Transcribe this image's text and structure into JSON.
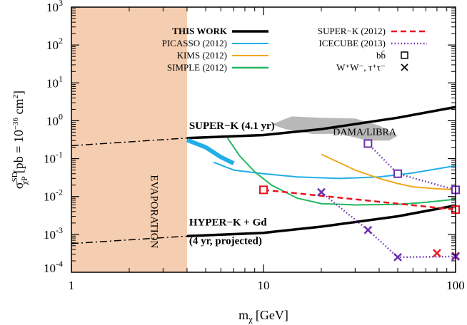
{
  "chart_data": {
    "type": "line",
    "xlabel": "m",
    "xlabel_sub": "χ",
    "xlabel_unit": "[GeV]",
    "ylabel": "σ",
    "ylabel_sup": "SD",
    "ylabel_sub": "χP",
    "ylabel_unit": "[pb = 10",
    "ylabel_unit_exp": "−36",
    "ylabel_unit_end": " cm",
    "ylabel_unit_exp2": "2",
    "ylabel_close": "]",
    "x_scale": "log",
    "y_scale": "log",
    "xlim": [
      1,
      100
    ],
    "ylim": [
      0.0001,
      1000
    ],
    "x_ticks": [
      {
        "value": 1,
        "label": "1"
      },
      {
        "value": 10,
        "label": "10"
      },
      {
        "value": 100,
        "label": "100"
      }
    ],
    "y_ticks": [
      {
        "value": 0.001,
        "base": "10",
        "exp": "-3"
      },
      {
        "value": 0.01,
        "base": "10",
        "exp": "-2"
      },
      {
        "value": 0.1,
        "base": "10",
        "exp": "-1"
      },
      {
        "value": 1,
        "base": "10",
        "exp": "0"
      },
      {
        "value": 10,
        "base": "10",
        "exp": "1"
      },
      {
        "value": 100,
        "base": "10",
        "exp": "2"
      },
      {
        "value": 1000,
        "base": "10",
        "exp": "3"
      }
    ],
    "y_tick_low": {
      "value": 0.0001,
      "base": "10",
      "exp": "-4"
    },
    "grid": false,
    "legend_position": "top",
    "shaded_region": {
      "x": [
        1,
        4
      ],
      "label": "EVAPORATION",
      "color": "#f5cdb0"
    },
    "series": [
      {
        "name": "THIS WORK — SUPER-K (4.1 yr)",
        "color": "#000000",
        "style": "solid",
        "x": [
          4,
          10,
          20,
          50,
          100
        ],
        "y": [
          0.35,
          0.42,
          0.6,
          1.2,
          2.3
        ]
      },
      {
        "name": "SUPER-K (4.1 yr) extrapolation",
        "color": "#000000",
        "style": "dashdot",
        "x": [
          1,
          4
        ],
        "y": [
          0.22,
          0.35
        ]
      },
      {
        "name": "THIS WORK — HYPER-K + Gd (4 yr, projected)",
        "color": "#000000",
        "style": "solid",
        "x": [
          4,
          10,
          20,
          50,
          100
        ],
        "y": [
          0.0009,
          0.0011,
          0.0016,
          0.003,
          0.0058
        ]
      },
      {
        "name": "HYPER-K + Gd extrapolation",
        "color": "#000000",
        "style": "dashdot",
        "x": [
          1,
          4
        ],
        "y": [
          0.00057,
          0.0009
        ]
      },
      {
        "name": "PICASSO (2012)",
        "color": "#22aee6",
        "style": "solid",
        "x": [
          5.5,
          7,
          10,
          15,
          25,
          40,
          60,
          100
        ],
        "y": [
          0.08,
          0.05,
          0.04,
          0.033,
          0.03,
          0.033,
          0.042,
          0.065
        ]
      },
      {
        "name": "PICASSO (2012) low-mass band",
        "color": "#22aee6",
        "style": "band",
        "x": [
          4,
          5,
          6,
          7
        ],
        "y": [
          0.31,
          0.2,
          0.11,
          0.075
        ]
      },
      {
        "name": "KIMS (2012)",
        "color": "#f2a81d",
        "style": "solid",
        "x": [
          20,
          30,
          40,
          50,
          60,
          80,
          100
        ],
        "y": [
          0.13,
          0.05,
          0.03,
          0.022,
          0.018,
          0.016,
          0.015
        ]
      },
      {
        "name": "SIMPLE (2012)",
        "color": "#22b860",
        "style": "solid",
        "x": [
          6.5,
          7.5,
          9,
          11,
          15,
          20,
          30,
          50,
          70,
          100
        ],
        "y": [
          0.35,
          0.12,
          0.045,
          0.02,
          0.009,
          0.0065,
          0.006,
          0.0062,
          0.007,
          0.0085
        ]
      },
      {
        "name": "SUPER-K (2012)",
        "color": "#e8141c",
        "style": "dashed",
        "marker": "square",
        "x": [
          10,
          100
        ],
        "y": [
          0.015,
          0.0045
        ]
      },
      {
        "name": "SUPER-K (2012) W+W−, τ+τ−",
        "color": "#e8141c",
        "style": "none",
        "marker": "cross",
        "x": [
          80,
          100
        ],
        "y": [
          0.00032,
          0.00027
        ]
      },
      {
        "name": "ICECUBE (2013) bb̄",
        "color": "#6b2fb0",
        "style": "dotted",
        "marker": "square",
        "x": [
          35,
          50,
          100
        ],
        "y": [
          0.25,
          0.04,
          0.015
        ]
      },
      {
        "name": "ICECUBE (2013) W+W−, τ+τ−",
        "color": "#6b2fb0",
        "style": "dotted",
        "marker": "cross",
        "x": [
          20,
          35,
          50,
          100
        ],
        "y": [
          0.013,
          0.0013,
          0.00025,
          0.00026
        ]
      }
    ],
    "dama_region": {
      "label": "DAMA/LIBRA",
      "color": "#b8b8b8",
      "x": [
        11,
        14,
        20,
        30,
        40,
        50,
        45,
        35,
        25,
        18,
        13,
        11
      ],
      "y": [
        0.8,
        1.3,
        1.2,
        1.15,
        0.75,
        0.4,
        0.3,
        0.3,
        0.45,
        0.45,
        0.6,
        0.8
      ]
    },
    "legend": {
      "this_work": "THIS WORK",
      "picasso": "PICASSO (2012)",
      "kims": "KIMS (2012)",
      "simple": "SIMPLE (2012)",
      "superk2012": "SUPER−K (2012)",
      "icecube": "ICECUBE (2013)",
      "bb": "bb̄",
      "ww": "W⁺W⁻, τ⁺τ⁻"
    },
    "annotations": {
      "superk": "SUPER−K (4.1 yr)",
      "dama": "DAMA/LIBRA",
      "hyperk": "HYPER−K + Gd",
      "hyperk_sub": "(4 yr, projected)",
      "evaporation": "EVAPORATION"
    }
  }
}
